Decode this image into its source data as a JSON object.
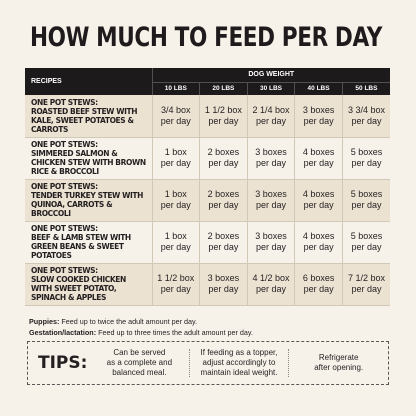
{
  "title": "HOW MUCH TO FEED PER DAY",
  "table": {
    "recipes_header": "RECIPES",
    "dog_weight_header": "DOG WEIGHT",
    "weights": [
      "10 LBS",
      "20 LBS",
      "30 LBS",
      "40 LBS",
      "50 LBS"
    ],
    "rows": [
      {
        "prefix": "ONE POT STEWS:",
        "name": "ROASTED BEEF STEW WITH KALE, SWEET POTATOES & CARROTS",
        "amounts": [
          [
            "3/4 box",
            "per day"
          ],
          [
            "1 1/2 box",
            "per day"
          ],
          [
            "2 1/4 box",
            "per day"
          ],
          [
            "3 boxes",
            "per day"
          ],
          [
            "3 3/4 box",
            "per day"
          ]
        ]
      },
      {
        "prefix": "ONE POT STEWS:",
        "name": "SIMMERED SALMON & CHICKEN STEW WITH BROWN RICE & BROCCOLI",
        "amounts": [
          [
            "1 box",
            "per day"
          ],
          [
            "2 boxes",
            "per day"
          ],
          [
            "3 boxes",
            "per day"
          ],
          [
            "4 boxes",
            "per day"
          ],
          [
            "5 boxes",
            "per day"
          ]
        ]
      },
      {
        "prefix": "ONE POT STEWS:",
        "name": "TENDER TURKEY STEW WITH QUINOA, CARROTS & BROCCOLI",
        "amounts": [
          [
            "1 box",
            "per day"
          ],
          [
            "2 boxes",
            "per day"
          ],
          [
            "3 boxes",
            "per day"
          ],
          [
            "4 boxes",
            "per day"
          ],
          [
            "5 boxes",
            "per day"
          ]
        ]
      },
      {
        "prefix": "ONE POT STEWS:",
        "name": "BEEF & LAMB STEW WITH GREEN BEANS & SWEET POTATOES",
        "amounts": [
          [
            "1 box",
            "per day"
          ],
          [
            "2 boxes",
            "per day"
          ],
          [
            "3 boxes",
            "per day"
          ],
          [
            "4 boxes",
            "per day"
          ],
          [
            "5 boxes",
            "per day"
          ]
        ]
      },
      {
        "prefix": "ONE POT STEWS:",
        "name": "SLOW COOKED CHICKEN WITH SWEET POTATO, SPINACH & APPLES",
        "amounts": [
          [
            "1 1/2 box",
            "per day"
          ],
          [
            "3 boxes",
            "per day"
          ],
          [
            "4 1/2 box",
            "per day"
          ],
          [
            "6 boxes",
            "per day"
          ],
          [
            "7 1/2 box",
            "per day"
          ]
        ]
      }
    ]
  },
  "notes": {
    "puppies_label": "Puppies:",
    "puppies_text": "Feed up to twice the adult amount per day.",
    "gestation_label": "Gestation/lactation:",
    "gestation_text": "Feed up to three times the adult amount per day."
  },
  "tips": {
    "label": "TIPS:",
    "items": [
      [
        "Can be served",
        "as a complete and",
        "balanced meal."
      ],
      [
        "If feeding as a topper,",
        "adjust accordingly to",
        "maintain ideal weight."
      ],
      [
        "Refrigerate",
        "after opening."
      ]
    ]
  }
}
